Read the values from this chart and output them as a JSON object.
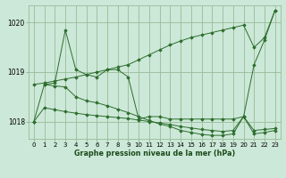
{
  "title": "Graphe pression niveau de la mer (hPa)",
  "bg_color": "#cce8d8",
  "grid_color": "#99bb99",
  "line_color": "#2d6e2d",
  "marker_color": "#2d6e2d",
  "ylim": [
    1017.65,
    1020.35
  ],
  "yticks": [
    1018,
    1019,
    1020
  ],
  "xlim": [
    -0.5,
    23.5
  ],
  "xticks": [
    0,
    1,
    2,
    3,
    4,
    5,
    6,
    7,
    8,
    9,
    10,
    11,
    12,
    13,
    14,
    15,
    16,
    17,
    18,
    19,
    20,
    21,
    22,
    23
  ],
  "series": [
    {
      "x": [
        0,
        1,
        2,
        3,
        4,
        5,
        6,
        7,
        8,
        9,
        10,
        11,
        12,
        13,
        14,
        15,
        16,
        17,
        18,
        19,
        20,
        21,
        22,
        23
      ],
      "y": [
        1018.75,
        1018.78,
        1018.82,
        1018.86,
        1018.9,
        1018.95,
        1019.0,
        1019.05,
        1019.1,
        1019.15,
        1019.25,
        1019.35,
        1019.45,
        1019.55,
        1019.63,
        1019.7,
        1019.75,
        1019.8,
        1019.85,
        1019.9,
        1019.95,
        1019.5,
        1019.7,
        1020.25
      ]
    },
    {
      "x": [
        1,
        2,
        3,
        4,
        5,
        6,
        7,
        8,
        9,
        10,
        11,
        12,
        13,
        14,
        15,
        16,
        17,
        18,
        19,
        20,
        21,
        22,
        23
      ],
      "y": [
        1018.75,
        1018.78,
        1019.85,
        1019.05,
        1018.95,
        1018.9,
        1019.05,
        1019.05,
        1018.9,
        1018.05,
        1018.1,
        1018.1,
        1018.05,
        1018.05,
        1018.05,
        1018.05,
        1018.05,
        1018.05,
        1018.05,
        1018.1,
        1019.15,
        1019.65,
        1020.25
      ]
    },
    {
      "x": [
        0,
        1,
        2,
        3,
        4,
        5,
        6,
        7,
        8,
        9,
        10,
        11,
        12,
        13,
        14,
        15,
        16,
        17,
        18,
        19,
        20,
        21,
        22,
        23
      ],
      "y": [
        1018.0,
        1018.28,
        1018.24,
        1018.2,
        1018.17,
        1018.14,
        1018.12,
        1018.1,
        1018.08,
        1018.06,
        1018.03,
        1018.0,
        1017.97,
        1017.94,
        1017.9,
        1017.87,
        1017.84,
        1017.82,
        1017.8,
        1017.82,
        1018.1,
        1017.82,
        1017.84,
        1017.86
      ]
    },
    {
      "x": [
        0,
        1,
        2,
        3,
        4,
        5,
        6,
        7,
        8,
        9,
        10,
        11,
        12,
        13,
        14,
        15,
        16,
        17,
        18,
        19,
        20,
        21,
        22,
        23
      ],
      "y": [
        1018.0,
        1018.75,
        1018.72,
        1018.7,
        1018.5,
        1018.42,
        1018.38,
        1018.32,
        1018.25,
        1018.18,
        1018.1,
        1018.02,
        1017.95,
        1017.9,
        1017.82,
        1017.78,
        1017.74,
        1017.72,
        1017.72,
        1017.75,
        1018.1,
        1017.75,
        1017.78,
        1017.82
      ]
    }
  ]
}
